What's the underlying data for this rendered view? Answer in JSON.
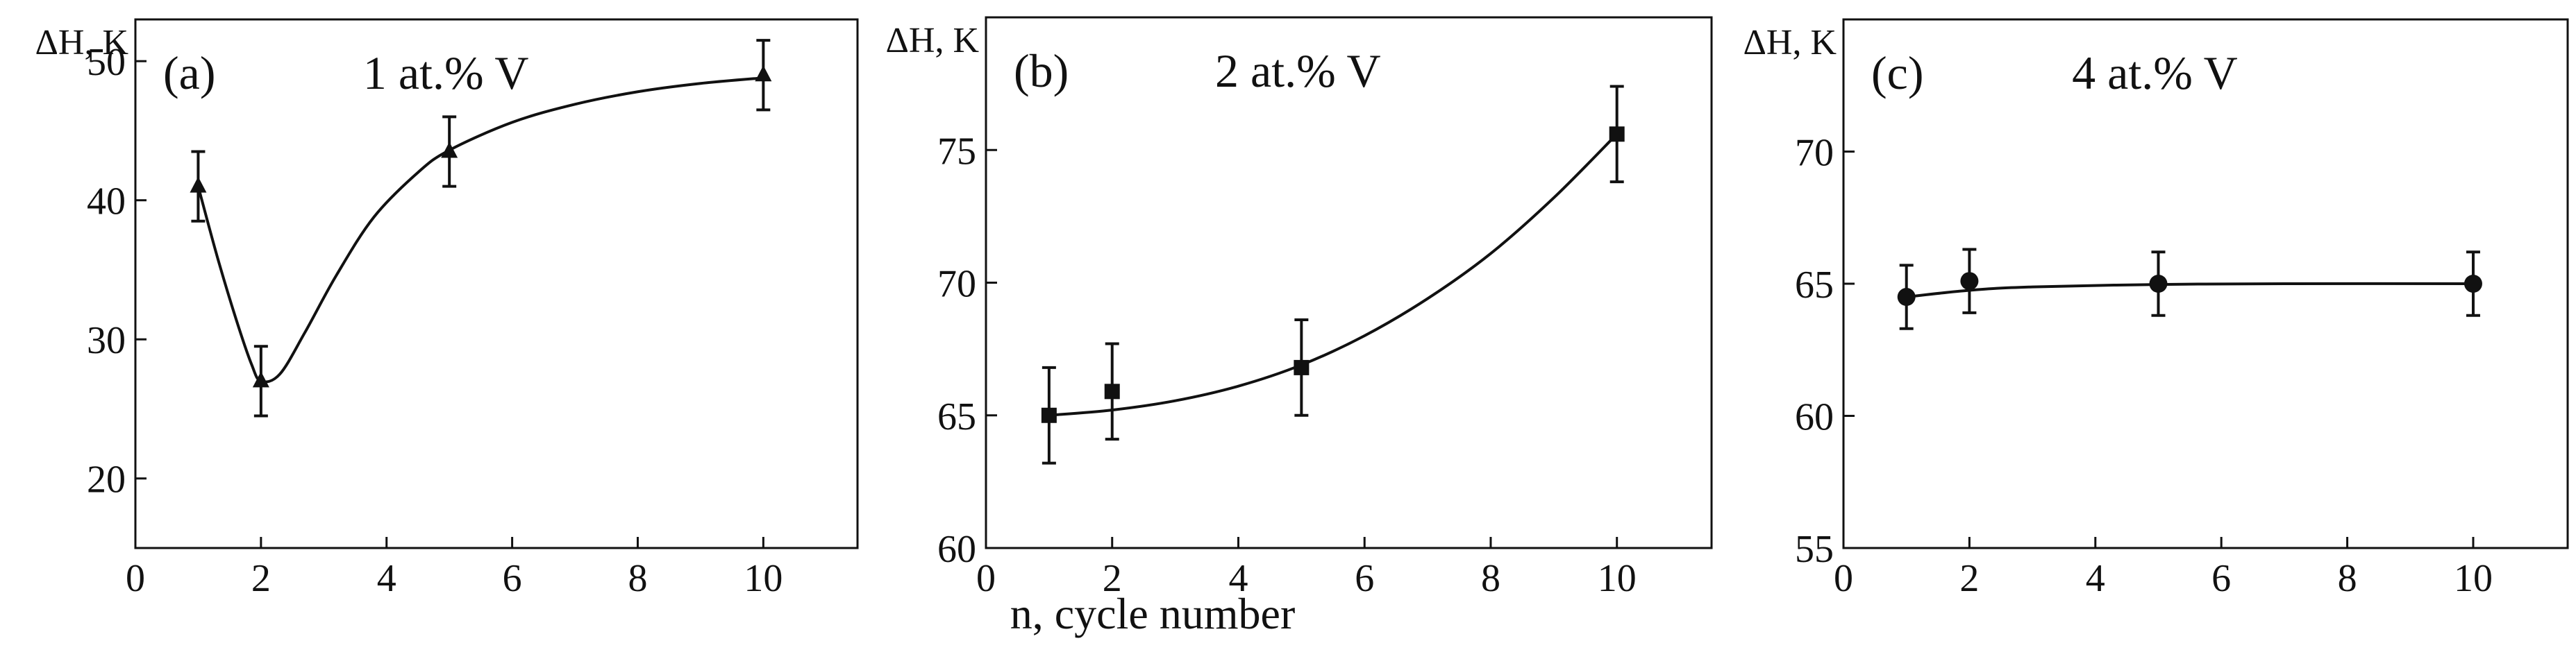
{
  "xlabel": "n, cycle number",
  "chart_data": [
    {
      "type": "line",
      "panel": "(a)",
      "title": "1 at.% V",
      "ylabel": "ΔH, K",
      "marker": "triangle",
      "xlim": [
        0,
        11.5
      ],
      "ylim": [
        15,
        53
      ],
      "xticks": [
        0,
        2,
        4,
        6,
        8,
        10
      ],
      "yticks": [
        20,
        30,
        40,
        50
      ],
      "x": [
        1,
        2,
        5,
        10
      ],
      "y": [
        41,
        27,
        43.5,
        49
      ],
      "err": [
        2.5,
        2.5,
        2.5,
        2.5
      ],
      "curve": [
        [
          1,
          41
        ],
        [
          1.3,
          36
        ],
        [
          1.6,
          31.5
        ],
        [
          1.85,
          28.2
        ],
        [
          2,
          27
        ],
        [
          2.3,
          27.5
        ],
        [
          2.7,
          30.5
        ],
        [
          3.2,
          34.6
        ],
        [
          3.8,
          38.8
        ],
        [
          4.5,
          42
        ],
        [
          5,
          43.6
        ],
        [
          6,
          45.6
        ],
        [
          7,
          46.9
        ],
        [
          8,
          47.8
        ],
        [
          9,
          48.4
        ],
        [
          10,
          48.8
        ]
      ]
    },
    {
      "type": "line",
      "panel": "(b)",
      "title": "2 at.% V",
      "ylabel": "ΔH, K",
      "marker": "square",
      "xlim": [
        0,
        11.5
      ],
      "ylim": [
        60,
        80
      ],
      "xticks": [
        0,
        2,
        4,
        6,
        8,
        10
      ],
      "yticks": [
        60,
        65,
        70,
        75
      ],
      "x": [
        1,
        2,
        5,
        10
      ],
      "y": [
        65,
        65.9,
        66.8,
        75.6
      ],
      "err": [
        1.8,
        1.8,
        1.8,
        1.8
      ],
      "curve": [
        [
          1,
          65
        ],
        [
          2,
          65.2
        ],
        [
          3,
          65.55
        ],
        [
          4,
          66.1
        ],
        [
          5,
          66.9
        ],
        [
          6,
          68.0
        ],
        [
          7,
          69.4
        ],
        [
          8,
          71.1
        ],
        [
          9,
          73.2
        ],
        [
          10,
          75.6
        ]
      ]
    },
    {
      "type": "line",
      "panel": "(c)",
      "title": "4 at.% V",
      "ylabel": "ΔH, K",
      "marker": "circle",
      "xlim": [
        0,
        11.5
      ],
      "ylim": [
        55,
        75
      ],
      "xticks": [
        0,
        2,
        4,
        6,
        8,
        10
      ],
      "yticks": [
        55,
        60,
        65,
        70
      ],
      "x": [
        1,
        2,
        5,
        10
      ],
      "y": [
        64.5,
        65.1,
        65,
        65
      ],
      "err": [
        1.2,
        1.2,
        1.2,
        1.2
      ],
      "curve": [
        [
          1,
          64.5
        ],
        [
          2,
          64.75
        ],
        [
          3,
          64.88
        ],
        [
          5,
          64.97
        ],
        [
          7,
          65.0
        ],
        [
          10,
          65.0
        ]
      ]
    }
  ]
}
